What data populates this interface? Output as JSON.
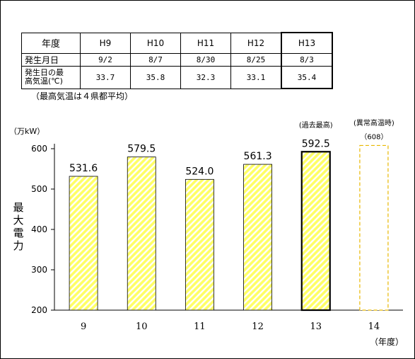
{
  "table": {
    "header_label": "年度",
    "columns": [
      "H9",
      "H10",
      "H11",
      "H12",
      "H13"
    ],
    "row1_label": "発生月日",
    "row1_values": [
      "9/2",
      "8/7",
      "8/30",
      "8/25",
      "8/3"
    ],
    "row2_label_line1": "発生日の最",
    "row2_label_line2": "高気温(℃)",
    "row2_values": [
      "33.7",
      "35.8",
      "32.3",
      "33.1",
      "35.4"
    ]
  },
  "table_note": "（最高気温は４県都平均）",
  "chart_data": {
    "type": "bar",
    "categories": [
      "9",
      "10",
      "11",
      "12",
      "13",
      "14"
    ],
    "values": [
      531.6,
      579.5,
      524.0,
      561.3,
      592.5,
      608
    ],
    "data_labels": [
      "531.6",
      "579.5",
      "524.0",
      "561.3",
      "592.5",
      "（608）"
    ],
    "ylim": [
      200,
      620
    ],
    "yticks": [
      200,
      300,
      400,
      500,
      600
    ],
    "unit_label": "（万kW）",
    "ylabel": "最大電力",
    "xlabel": "（年度）",
    "annotations": [
      "(過去最高)",
      "(異常高温時)"
    ],
    "colors": {
      "fill": "#ffff66",
      "hatch": "#ffffff",
      "outline": "#000000"
    }
  }
}
